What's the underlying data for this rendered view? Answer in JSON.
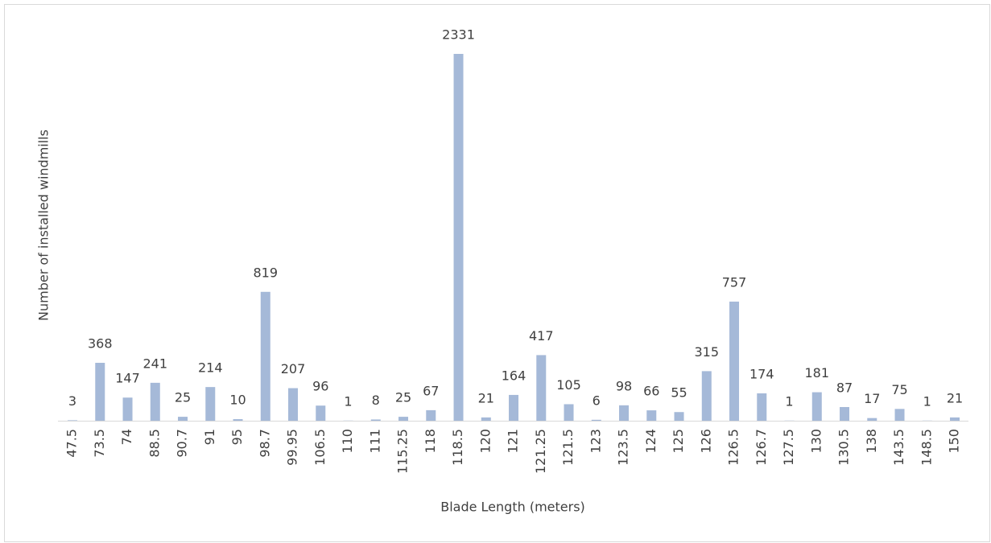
{
  "chart_data": {
    "type": "bar",
    "x_label": "Blade Length (meters)",
    "y_label": "Number of installed windmills",
    "categories": [
      "47.5",
      "73.5",
      "74",
      "88.5",
      "90.7",
      "91",
      "95",
      "98.7",
      "99.95",
      "106.5",
      "110",
      "111",
      "115.25",
      "118",
      "118.5",
      "120",
      "121",
      "121.25",
      "121.5",
      "123",
      "123.5",
      "124",
      "125",
      "126",
      "126.5",
      "126.7",
      "127.5",
      "130",
      "130.5",
      "138",
      "143.5",
      "148.5",
      "150"
    ],
    "values": [
      3,
      368,
      147,
      241,
      25,
      214,
      10,
      819,
      207,
      96,
      1,
      8,
      25,
      67,
      2331,
      21,
      164,
      417,
      105,
      6,
      98,
      66,
      55,
      315,
      757,
      174,
      1,
      181,
      87,
      17,
      75,
      1,
      21
    ],
    "color": "#a5b9d8"
  }
}
